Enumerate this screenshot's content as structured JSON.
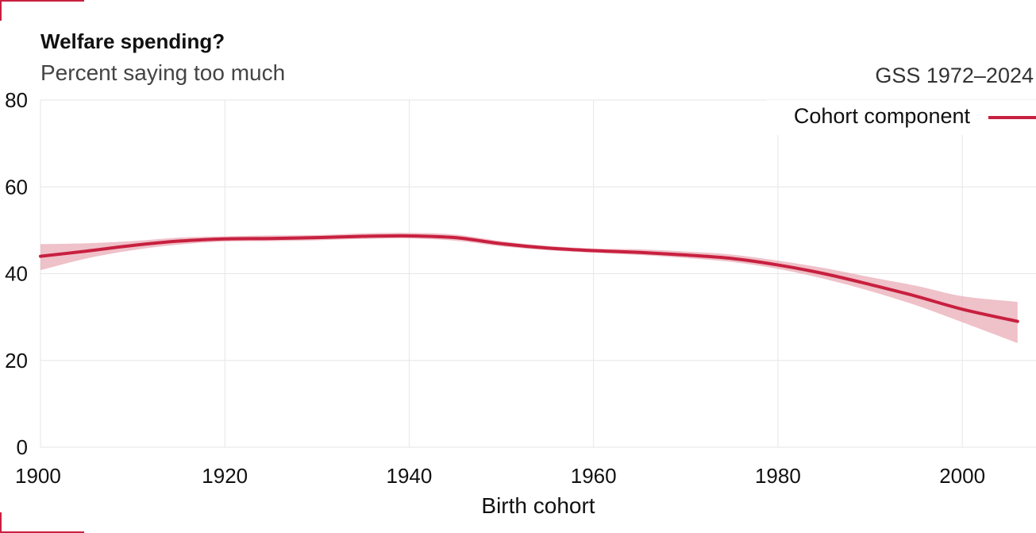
{
  "chart_data": {
    "type": "line",
    "title": "Welfare spending?",
    "subtitle": "Percent saying too much",
    "source": "GSS 1972–2024",
    "xlabel": "Birth cohort",
    "ylabel": "",
    "xlim": [
      1900,
      2008
    ],
    "ylim": [
      0,
      80
    ],
    "xticks": [
      1900,
      1920,
      1940,
      1960,
      1980,
      2000
    ],
    "yticks": [
      0,
      20,
      40,
      60,
      80
    ],
    "grid": true,
    "legend_position": "top-right",
    "colors": {
      "line": "#c8203f",
      "band": "#e8a6b2",
      "grid": "#e6e6e6"
    },
    "series": [
      {
        "name": "Cohort component",
        "x": [
          1900,
          1905,
          1910,
          1915,
          1920,
          1925,
          1930,
          1935,
          1940,
          1945,
          1950,
          1955,
          1960,
          1965,
          1970,
          1975,
          1980,
          1985,
          1990,
          1995,
          2000,
          2006
        ],
        "y": [
          44.0,
          45.2,
          46.5,
          47.5,
          48.0,
          48.1,
          48.3,
          48.6,
          48.7,
          48.3,
          46.9,
          45.9,
          45.3,
          44.9,
          44.3,
          43.5,
          42.0,
          40.0,
          37.5,
          34.8,
          31.8,
          29.0
        ],
        "lower": [
          40.8,
          43.5,
          45.4,
          46.7,
          47.4,
          47.5,
          47.7,
          48.0,
          48.1,
          47.6,
          46.3,
          45.4,
          44.8,
          44.3,
          43.6,
          42.7,
          41.1,
          38.8,
          36.0,
          32.7,
          28.8,
          24.0
        ],
        "upper": [
          46.8,
          47.0,
          47.5,
          48.3,
          48.6,
          48.8,
          48.9,
          49.3,
          49.4,
          49.0,
          47.5,
          46.4,
          45.8,
          45.6,
          45.1,
          44.4,
          43.0,
          41.3,
          39.2,
          37.2,
          34.8,
          33.5
        ]
      }
    ]
  }
}
